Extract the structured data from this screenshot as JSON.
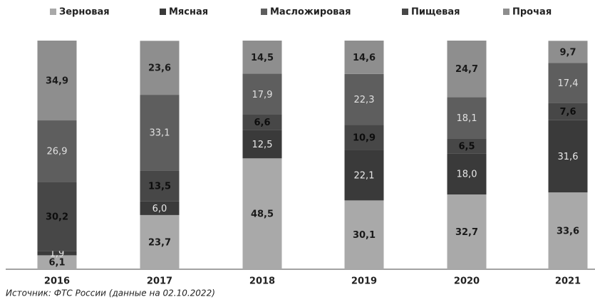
{
  "chart_data": {
    "type": "stacked_bar",
    "categories": [
      "2016",
      "2017",
      "2018",
      "2019",
      "2020",
      "2021"
    ],
    "series": [
      {
        "name": "Зерновая",
        "color": "#a9a9a9",
        "values": [
          6.1,
          23.7,
          48.5,
          30.1,
          32.7,
          33.6
        ],
        "value_labels": [
          "6,1",
          "23,7",
          "48,5",
          "30,1",
          "32,7",
          "33,6"
        ]
      },
      {
        "name": "Мясная",
        "color": "#3a3a3a",
        "values": [
          1.9,
          6.0,
          12.5,
          22.1,
          18.0,
          31.6
        ],
        "value_labels": [
          "1,9",
          "6,0",
          "12,5",
          "22,1",
          "18,0",
          "31,6"
        ]
      },
      {
        "name": "Масложировая",
        "color": "#5e5e5e",
        "values": [
          26.9,
          33.1,
          17.9,
          22.3,
          18.1,
          17.4
        ],
        "value_labels": [
          "26,9",
          "33,1",
          "17,9",
          "22,3",
          "18,1",
          "17,4"
        ]
      },
      {
        "name": "Пищевая",
        "color": "#474747",
        "values": [
          30.2,
          13.5,
          6.6,
          10.9,
          6.5,
          7.6
        ],
        "value_labels": [
          "30,2",
          "13,5",
          "6,6",
          "10,9",
          "6,5",
          "7,6"
        ]
      },
      {
        "name": "Прочая",
        "color": "#8e8e8e",
        "values": [
          34.9,
          23.6,
          14.5,
          14.6,
          24.7,
          9.7
        ],
        "value_labels": [
          "34,9",
          "23,6",
          "14,5",
          "14,6",
          "24,7",
          "9,7"
        ]
      }
    ],
    "source": "Источник: ФТС России (данные на 02.10.2022)"
  }
}
